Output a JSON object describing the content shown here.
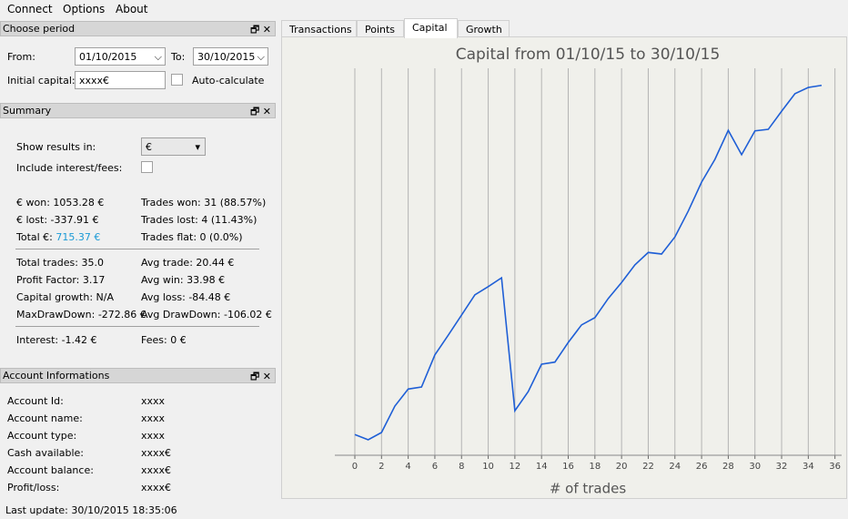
{
  "menu": [
    "Connect",
    "Options",
    "About"
  ],
  "choose_period": {
    "title": "Choose period",
    "from_label": "From:",
    "from_value": "01/10/2015",
    "to_label": "To:",
    "to_value": "30/10/2015",
    "initial_capital_label": "Initial capital:",
    "initial_capital_value": "xxxx€",
    "auto_calculate": "Auto-calculate"
  },
  "summary": {
    "title": "Summary",
    "show_results_label": "Show results in:",
    "currency": "€",
    "include_label": "Include interest/fees:",
    "won": "€ won: 1053.28 €",
    "lost": "€ lost: -337.91 €",
    "total_label": "Total €:",
    "total_value": "715.37 €",
    "trades_won": "Trades won: 31 (88.57%)",
    "trades_lost": "Trades lost: 4 (11.43%)",
    "trades_flat": "Trades flat: 0 (0.0%)",
    "total_trades": "Total trades: 35.0",
    "avg_trade": "Avg trade: 20.44 €",
    "profit_factor": "Profit Factor: 3.17",
    "avg_win": "Avg win: 33.98 €",
    "capital_growth": "Capital growth: N/A",
    "avg_loss": "Avg loss: -84.48 €",
    "max_drawdown": "MaxDrawDown: -272.86 €",
    "avg_drawdown": "Avg DrawDown: -106.02 €",
    "interest": "Interest: -1.42 €",
    "fees": "Fees: 0 €"
  },
  "account": {
    "title": "Account Informations",
    "rows": [
      [
        "Account Id:",
        "xxxx"
      ],
      [
        "Account name:",
        "xxxx"
      ],
      [
        "Account type:",
        "xxxx"
      ],
      [
        "Cash available:",
        "xxxx€"
      ],
      [
        "Account balance:",
        "xxxx€"
      ],
      [
        "Profit/loss:",
        "xxxx€"
      ]
    ]
  },
  "last_update": "Last update: 30/10/2015 18:35:06",
  "tabs": [
    "Transactions",
    "Points",
    "Capital",
    "Growth"
  ],
  "chart_data": {
    "type": "line",
    "title": "Capital from 01/10/15 to 30/10/15",
    "x_label": "# of trades",
    "x": [
      0,
      1,
      2,
      3,
      4,
      5,
      6,
      7,
      8,
      9,
      10,
      11,
      12,
      13,
      14,
      15,
      16,
      17,
      18,
      19,
      20,
      21,
      22,
      23,
      24,
      25,
      26,
      27,
      28,
      29,
      30,
      31,
      32,
      33,
      34,
      35
    ],
    "series": [
      {
        "color": "#1f5fd6",
        "values": [
          40,
          30,
          44,
          95,
          128,
          132,
          194,
          232,
          271,
          310,
          326,
          343,
          86,
          123,
          176,
          180,
          218,
          252,
          266,
          303,
          334,
          368,
          392,
          389,
          422,
          472,
          528,
          572,
          628,
          581,
          627,
          630,
          665,
          699,
          711,
          715
        ]
      }
    ],
    "xlim": [
      -1.5,
      36.5
    ],
    "ylim": [
      0,
      748
    ],
    "xticks": [
      0,
      2,
      4,
      6,
      8,
      10,
      12,
      14,
      16,
      18,
      20,
      22,
      24,
      26,
      28,
      30,
      32,
      34,
      36
    ],
    "grid": true
  }
}
